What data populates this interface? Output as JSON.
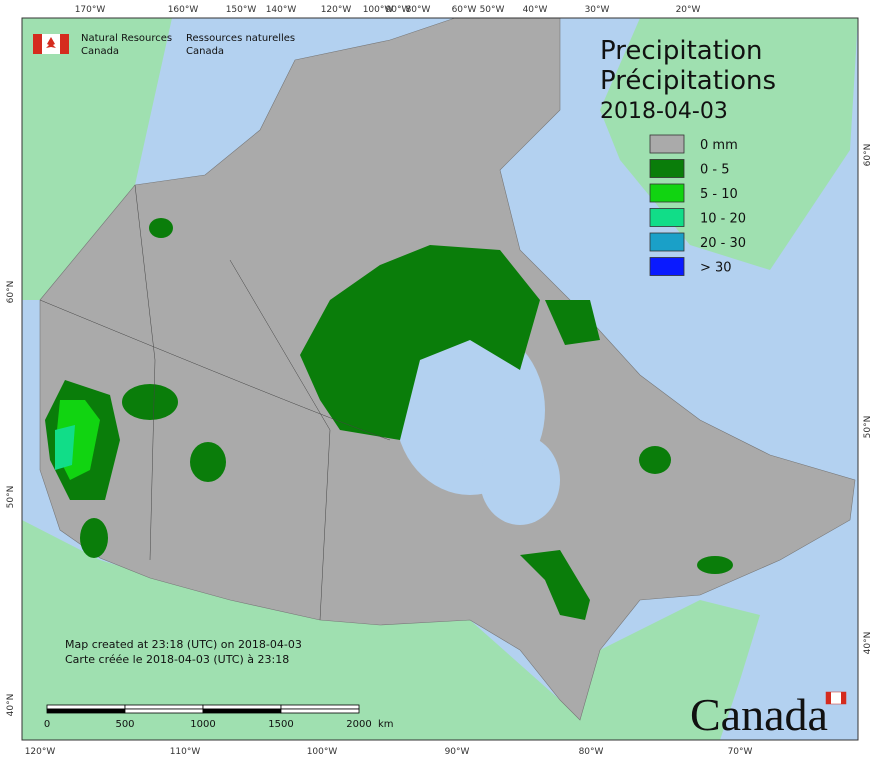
{
  "header": {
    "agency_en": [
      "Natural Resources",
      "Canada"
    ],
    "agency_fr": [
      "Ressources naturelles",
      "Canada"
    ]
  },
  "title": {
    "en": "Precipitation",
    "fr": "Précipitations",
    "date": "2018-04-03"
  },
  "legend": [
    {
      "label": "0 mm",
      "color": "#aaaaaa"
    },
    {
      "label": "0 - 5",
      "color": "#0a7d0a"
    },
    {
      "label": "5 - 10",
      "color": "#11d411"
    },
    {
      "label": "10 - 20",
      "color": "#11dd88"
    },
    {
      "label": "20 - 30",
      "color": "#1aa0c8"
    },
    {
      "label": "> 30",
      "color": "#0a1aff"
    }
  ],
  "top_labels": [
    "170°W",
    "160°W",
    "150°W",
    "140°W",
    "120°W",
    "100°W",
    "90°W",
    "80°W",
    "60°W",
    "50°W",
    "40°W",
    "30°W",
    "20°W"
  ],
  "bottom_labels": [
    "120°W",
    "110°W",
    "100°W",
    "90°W",
    "80°W",
    "70°W"
  ],
  "left_labels": [
    "60°N",
    "50°N",
    "40°N"
  ],
  "right_labels": [
    "60°N",
    "50°N",
    "40°N"
  ],
  "notes": [
    "Map created at 23:18 (UTC) on 2018-04-03",
    "Carte créée le 2018-04-03 (UTC) à 23:18"
  ],
  "scale": {
    "ticks": [
      0,
      500,
      1000,
      1500,
      2000
    ],
    "unit": "km"
  },
  "wordmark": "Canada"
}
